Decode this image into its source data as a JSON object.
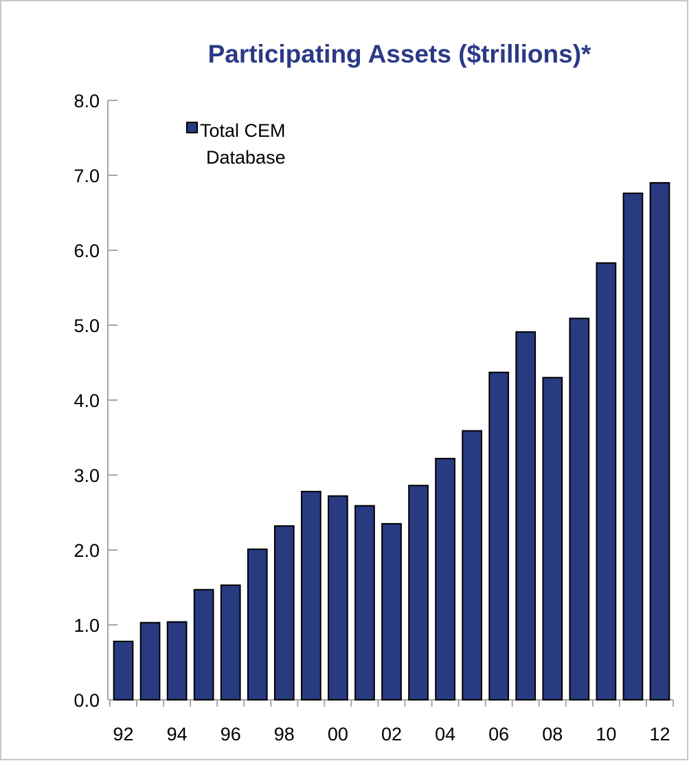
{
  "chart_data": {
    "type": "bar",
    "title": "Participating Assets ($trillions)*",
    "xlabel": "",
    "ylabel": "",
    "categories": [
      "92",
      "93",
      "94",
      "95",
      "96",
      "97",
      "98",
      "99",
      "00",
      "01",
      "02",
      "03",
      "04",
      "05",
      "06",
      "07",
      "08",
      "09",
      "10",
      "11",
      "12"
    ],
    "x_tick_labels": [
      "92",
      "94",
      "96",
      "98",
      "00",
      "02",
      "04",
      "06",
      "08",
      "10",
      "12"
    ],
    "series": [
      {
        "name": "Total CEM Database",
        "legend_lines": [
          "Total CEM",
          "Database"
        ],
        "color": "#283a80",
        "values": [
          0.78,
          1.03,
          1.04,
          1.47,
          1.53,
          2.01,
          2.32,
          2.78,
          2.72,
          2.59,
          2.35,
          2.86,
          3.22,
          3.59,
          4.37,
          4.91,
          4.3,
          5.09,
          5.83,
          6.76,
          6.9
        ]
      }
    ],
    "ylim": [
      0,
      8
    ],
    "y_ticks": [
      "0.0",
      "1.0",
      "2.0",
      "3.0",
      "4.0",
      "5.0",
      "6.0",
      "7.0",
      "8.0"
    ],
    "grid": false,
    "legend_position": "top-left"
  }
}
